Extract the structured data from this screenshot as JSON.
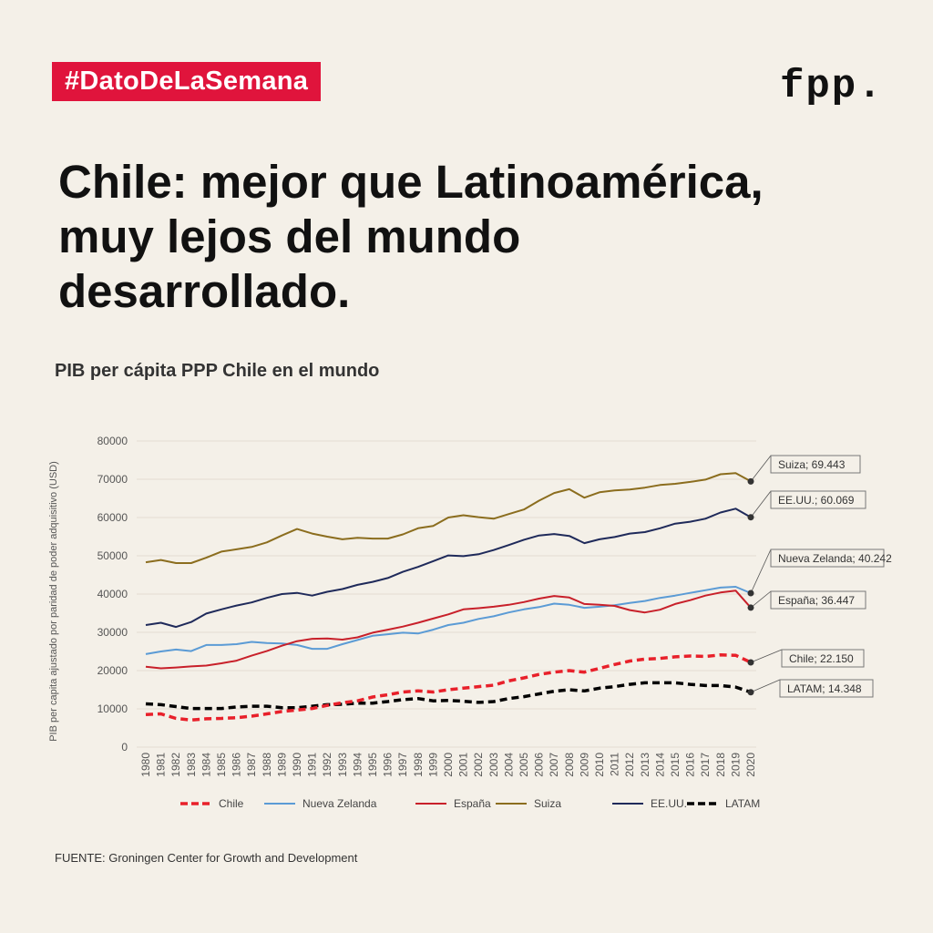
{
  "header": {
    "hashtag": "#DatoDeLaSemana",
    "logo": "fpp."
  },
  "title": "Chile: mejor que Latinoamérica, muy lejos del mundo desarrollado.",
  "subtitle": "PIB per cápita PPP Chile en el mundo",
  "source": "FUENTE: Groningen Center for Growth and Development",
  "colors": {
    "background": "#f4f0e8",
    "tag": "#e0143c"
  },
  "chart_data": {
    "type": "line",
    "title": "PIB per cápita PPP Chile en el mundo",
    "xlabel": "",
    "ylabel": "PIB per capita ajustado por paridad de poder adquisitivo (USD)",
    "ylim": [
      0,
      80000
    ],
    "yticks": [
      "0",
      "10000",
      "20000",
      "30000",
      "40000",
      "50000",
      "60000",
      "70000",
      "80000"
    ],
    "grid": true,
    "legend": "bottom",
    "x": [
      "1980",
      "1981",
      "1982",
      "1983",
      "1984",
      "1985",
      "1986",
      "1987",
      "1988",
      "1989",
      "1990",
      "1991",
      "1992",
      "1993",
      "1994",
      "1995",
      "1996",
      "1997",
      "1998",
      "1999",
      "2000",
      "2001",
      "2002",
      "2003",
      "2004",
      "2005",
      "2006",
      "2007",
      "2008",
      "2009",
      "2010",
      "2011",
      "2012",
      "2013",
      "2014",
      "2015",
      "2016",
      "2017",
      "2018",
      "2019",
      "2020"
    ],
    "series": [
      {
        "name": "Chile",
        "color": "#e8202a",
        "dashed": true,
        "label": "Chile; 22.150",
        "values": [
          8500,
          8700,
          7500,
          7100,
          7400,
          7500,
          7700,
          8100,
          8700,
          9300,
          9700,
          10100,
          10900,
          11600,
          12100,
          13100,
          13700,
          14400,
          14700,
          14400,
          15000,
          15400,
          15800,
          16200,
          17300,
          18100,
          19000,
          19600,
          20000,
          19600,
          20600,
          21600,
          22500,
          23000,
          23200,
          23600,
          23800,
          23700,
          24100,
          24000,
          22150
        ]
      },
      {
        "name": "Nueva Zelanda",
        "color": "#5b9bd5",
        "dashed": false,
        "label": "Nueva Zelanda; 40.242",
        "values": [
          24300,
          25000,
          25500,
          25100,
          26700,
          26700,
          26900,
          27500,
          27200,
          27100,
          26700,
          25700,
          25700,
          26900,
          28000,
          29100,
          29500,
          29900,
          29700,
          30700,
          31900,
          32500,
          33500,
          34200,
          35200,
          36000,
          36600,
          37500,
          37200,
          36400,
          36700,
          37100,
          37700,
          38200,
          39000,
          39600,
          40300,
          41000,
          41700,
          41900,
          40242
        ]
      },
      {
        "name": "España",
        "color": "#c8202a",
        "dashed": false,
        "label": "España; 36.447",
        "values": [
          21000,
          20600,
          20800,
          21100,
          21300,
          21900,
          22600,
          23900,
          25100,
          26500,
          27700,
          28300,
          28400,
          28100,
          28700,
          29900,
          30700,
          31500,
          32500,
          33600,
          34700,
          36000,
          36300,
          36700,
          37200,
          37900,
          38800,
          39500,
          39100,
          37400,
          37200,
          36900,
          35800,
          35200,
          35900,
          37400,
          38400,
          39600,
          40400,
          40900,
          36447
        ]
      },
      {
        "name": "Suiza",
        "color": "#8b6d1e",
        "dashed": false,
        "label": "Suiza; 69.443",
        "values": [
          48300,
          48900,
          48100,
          48100,
          49500,
          51100,
          51700,
          52300,
          53500,
          55300,
          57000,
          55800,
          55000,
          54300,
          54700,
          54500,
          54500,
          55600,
          57200,
          57800,
          60000,
          60600,
          60100,
          59700,
          60900,
          62100,
          64400,
          66400,
          67400,
          65200,
          66600,
          67100,
          67300,
          67800,
          68500,
          68800,
          69300,
          69900,
          71300,
          71600,
          69443
        ]
      },
      {
        "name": "EE.UU.",
        "color": "#1f2a5a",
        "dashed": false,
        "label": "EE.UU.; 60.069",
        "values": [
          31900,
          32500,
          31400,
          32700,
          34900,
          36000,
          37000,
          37800,
          39000,
          40000,
          40300,
          39600,
          40600,
          41300,
          42400,
          43200,
          44200,
          45800,
          47100,
          48600,
          50100,
          49900,
          50400,
          51500,
          52800,
          54200,
          55300,
          55700,
          55200,
          53300,
          54300,
          54900,
          55800,
          56200,
          57200,
          58400,
          58900,
          59700,
          61300,
          62300,
          60069
        ]
      },
      {
        "name": "LATAM",
        "color": "#000000",
        "dashed": true,
        "label": "LATAM; 14.348",
        "values": [
          11300,
          11100,
          10600,
          10100,
          10100,
          10100,
          10500,
          10700,
          10700,
          10300,
          10300,
          10700,
          11100,
          11200,
          11500,
          11500,
          11900,
          12400,
          12700,
          12100,
          12200,
          12000,
          11700,
          11900,
          12700,
          13200,
          13900,
          14600,
          15000,
          14700,
          15400,
          15800,
          16400,
          16800,
          16800,
          16800,
          16400,
          16100,
          16100,
          15700,
          14348
        ]
      }
    ]
  }
}
